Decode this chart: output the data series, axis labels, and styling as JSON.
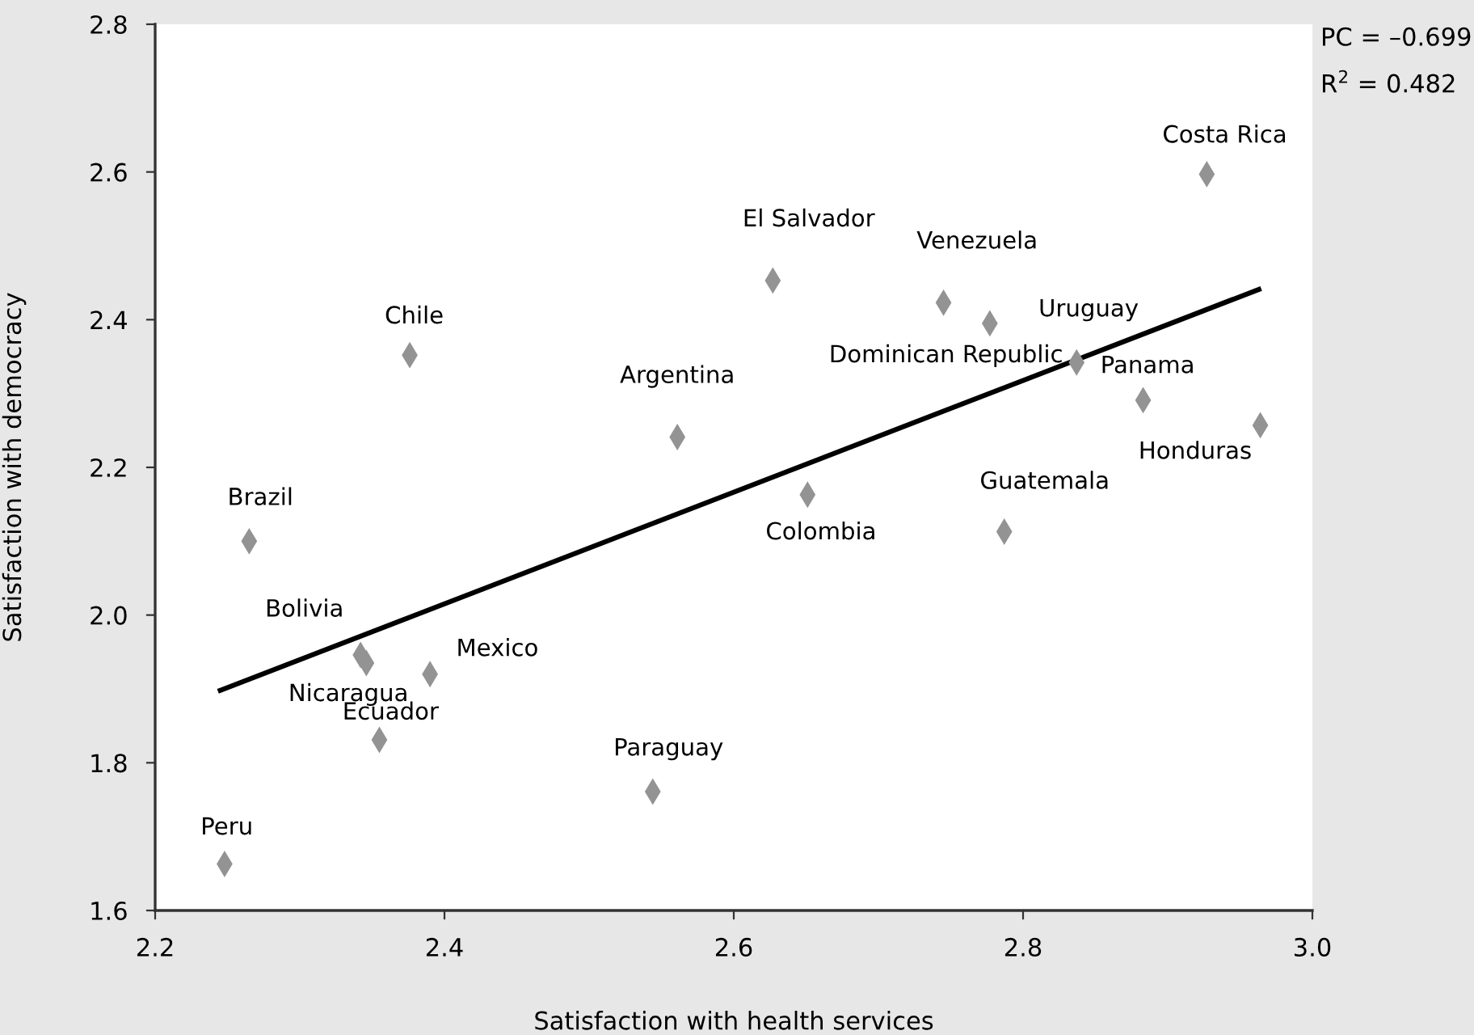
{
  "chart_data": {
    "type": "scatter",
    "xlabel": "Satisfaction with health services",
    "ylabel": "Satisfaction with democracy",
    "xlim": [
      2.2,
      3.0
    ],
    "xticks": [
      {
        "value": 2.2,
        "label": "2.2"
      },
      {
        "value": 2.4,
        "label": "2.4"
      },
      {
        "value": 2.6,
        "label": "2.6"
      },
      {
        "value": 2.8,
        "label": "2.8"
      },
      {
        "value": 3.0,
        "label": "3.0"
      }
    ],
    "ylim": [
      1.6,
      2.8
    ],
    "yticks": [
      {
        "value": 1.6,
        "label": "1.6"
      },
      {
        "value": 1.8,
        "label": "1.8"
      },
      {
        "value": 2.0,
        "label": "2.0"
      },
      {
        "value": 2.2,
        "label": "2.2"
      },
      {
        "value": 2.4,
        "label": "2.4"
      },
      {
        "value": 2.6,
        "label": "2.6"
      },
      {
        "value": 2.8,
        "label": "2.8"
      }
    ],
    "grid": false,
    "marker": "diamond",
    "series": [
      {
        "color": "#939393",
        "x": [
          2.376,
          2.561,
          2.265,
          2.342,
          2.346,
          2.39,
          2.355,
          2.544,
          2.248,
          2.627,
          2.745,
          2.777,
          2.837,
          2.883,
          2.964,
          2.927,
          2.651,
          2.787
        ],
        "values": [
          2.352,
          2.241,
          2.1,
          1.946,
          1.935,
          1.92,
          1.831,
          1.761,
          1.663,
          2.453,
          2.423,
          2.395,
          2.342,
          2.291,
          2.257,
          2.597,
          2.163,
          2.113
        ]
      },
      {
        "type": "line",
        "color": "#000000",
        "x": [
          2.245,
          2.963
        ],
        "values": [
          1.898,
          2.441
        ],
        "marker": "none",
        "line_style": "solid"
      }
    ],
    "annotations": [
      {
        "text": "Chile",
        "x": 2.376,
        "y": 2.352
      },
      {
        "text": "Argentina",
        "x": 2.561,
        "y": 2.241
      },
      {
        "text": "Brazil",
        "x": 2.265,
        "y": 2.1
      },
      {
        "text": "Bolivia",
        "x": 2.342,
        "y": 1.946
      },
      {
        "text": "Nicaragua",
        "x": 2.346,
        "y": 1.935
      },
      {
        "text": "Mexico",
        "x": 2.39,
        "y": 1.92
      },
      {
        "text": "Ecuador",
        "x": 2.355,
        "y": 1.831
      },
      {
        "text": "Paraguay",
        "x": 2.544,
        "y": 1.761
      },
      {
        "text": "Peru",
        "x": 2.248,
        "y": 1.663
      },
      {
        "text": "El Salvador",
        "x": 2.627,
        "y": 2.453
      },
      {
        "text": "Venezuela",
        "x": 2.745,
        "y": 2.423
      },
      {
        "text": "Uruguay",
        "x": 2.777,
        "y": 2.395
      },
      {
        "text": "Dominican Republic",
        "x": 2.837,
        "y": 2.342
      },
      {
        "text": "Panama",
        "x": 2.883,
        "y": 2.291
      },
      {
        "text": "Honduras",
        "x": 2.964,
        "y": 2.257
      },
      {
        "text": "Costa Rica",
        "x": 2.927,
        "y": 2.597
      },
      {
        "text": "Colombia",
        "x": 2.651,
        "y": 2.163
      },
      {
        "text": "Guatemala",
        "x": 2.787,
        "y": 2.113
      },
      "PC = –0.699",
      "R$^{2}$ = 0.482"
    ]
  }
}
